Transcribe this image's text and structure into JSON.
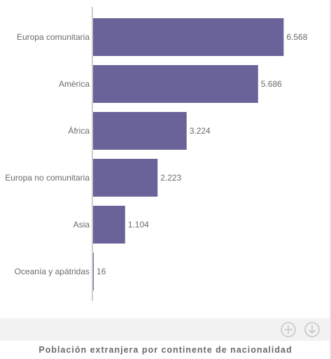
{
  "chart_data": {
    "type": "bar",
    "orientation": "horizontal",
    "categories": [
      "Europa comunitaria",
      "Amèrica",
      "África",
      "Europa no comunitaria",
      "Asia",
      "Oceanía y apátridas"
    ],
    "values": [
      6568,
      5686,
      3224,
      2223,
      1104,
      16
    ],
    "value_labels": [
      "6.568",
      "5.686",
      "3.224",
      "2.223",
      "1.104",
      "16"
    ],
    "xlim": [
      0,
      6800
    ],
    "grid": false,
    "bar_color": "#6a6399"
  },
  "caption": "Población extranjera por continente de nacionalidad",
  "toolbar": {
    "zoom_icon": "zoom-in-icon",
    "download_icon": "download-icon"
  }
}
